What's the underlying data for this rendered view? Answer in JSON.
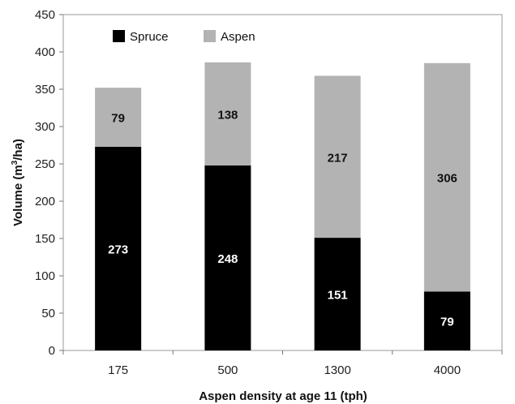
{
  "chart_data": {
    "type": "bar",
    "stacked": true,
    "categories": [
      "175",
      "500",
      "1300",
      "4000"
    ],
    "series": [
      {
        "name": "Spruce",
        "values": [
          273,
          248,
          151,
          79
        ],
        "color": "#000000",
        "label_color": "#ffffff"
      },
      {
        "name": "Aspen",
        "values": [
          79,
          138,
          217,
          306
        ],
        "color": "#b3b3b3",
        "label_color": "#111111"
      }
    ],
    "xlabel": "Aspen density at age 11 (tph)",
    "ylabel_main": "Volume (m",
    "ylabel_sup": "3",
    "ylabel_end": "/ha)",
    "ylim": [
      0,
      450
    ],
    "yticks": [
      "0",
      "50",
      "100",
      "150",
      "200",
      "250",
      "300",
      "350",
      "400",
      "450"
    ],
    "grid": false,
    "legend_position": "top-left"
  }
}
